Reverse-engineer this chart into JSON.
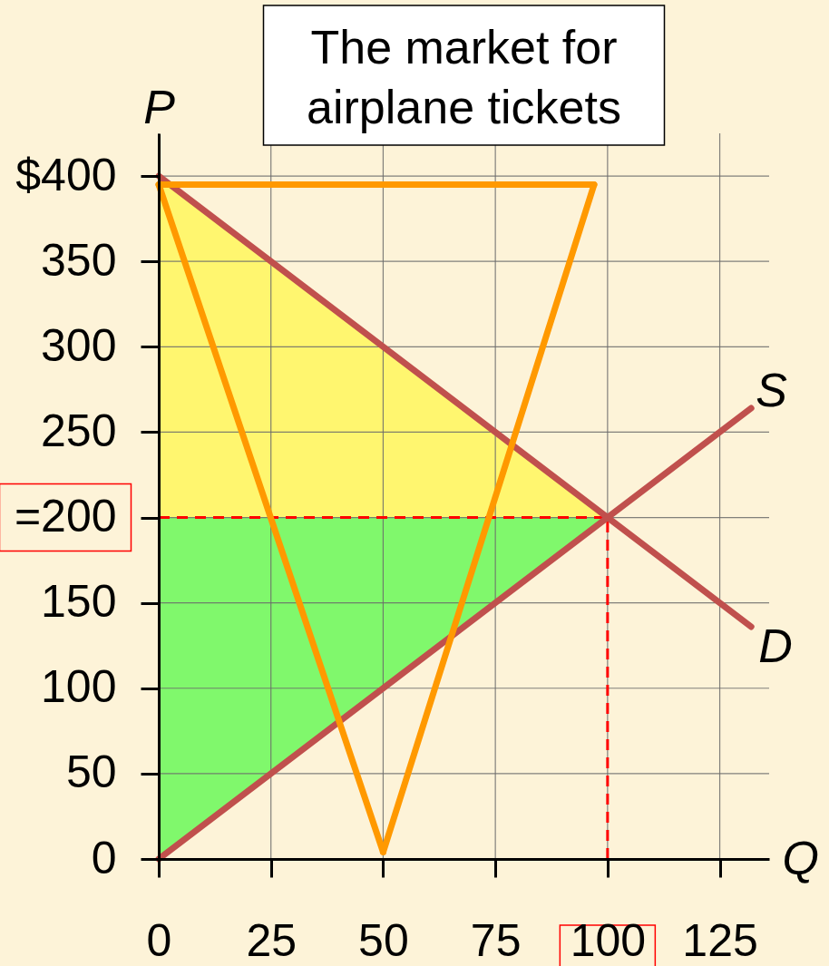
{
  "chart_data": {
    "type": "line",
    "title": "The market for airplane tickets",
    "xlabel": "Q",
    "ylabel": "P",
    "xlim": [
      0,
      136
    ],
    "ylim": [
      0,
      425
    ],
    "xticks": [
      0,
      25,
      50,
      75,
      100,
      125
    ],
    "yticks": [
      0,
      50,
      100,
      150,
      {
        "value": 200,
        "label": "=200"
      },
      250,
      300,
      350,
      {
        "value": 400,
        "label": "$400"
      }
    ],
    "grid": true,
    "series": [
      {
        "type": "area",
        "color": "#fff66f",
        "x": [
          0,
          100
        ],
        "values": [
          null,
          null
        ],
        "lower": [
          200,
          200
        ],
        "upper": [
          400,
          200
        ]
      },
      {
        "type": "area",
        "color": "#80f86c",
        "x": [
          0,
          100
        ],
        "values": [
          null,
          null
        ],
        "lower": [
          0,
          200
        ],
        "upper": [
          200,
          200
        ]
      },
      {
        "name": "D",
        "color": "#c0504d",
        "x": [
          0,
          132
        ],
        "values": [
          400,
          136
        ]
      },
      {
        "name": "S",
        "color": "#c0504d",
        "x": [
          0,
          132
        ],
        "values": [
          0,
          264
        ]
      },
      {
        "color": "#ff9900",
        "x": [
          0,
          97
        ],
        "values": [
          395,
          395
        ]
      },
      {
        "color": "#ff9900",
        "x": [
          50,
          97
        ],
        "values": [
          4,
          395
        ]
      },
      {
        "color": "#ff9900",
        "x": [
          0,
          50
        ],
        "values": [
          395,
          4
        ]
      }
    ],
    "ref_lines": [
      {
        "axis": "y",
        "value": 200,
        "color": "#ff0000",
        "line_style": "dashed"
      },
      {
        "axis": "x",
        "value": 100,
        "color": "#ff0000",
        "line_style": "dashed"
      }
    ]
  }
}
